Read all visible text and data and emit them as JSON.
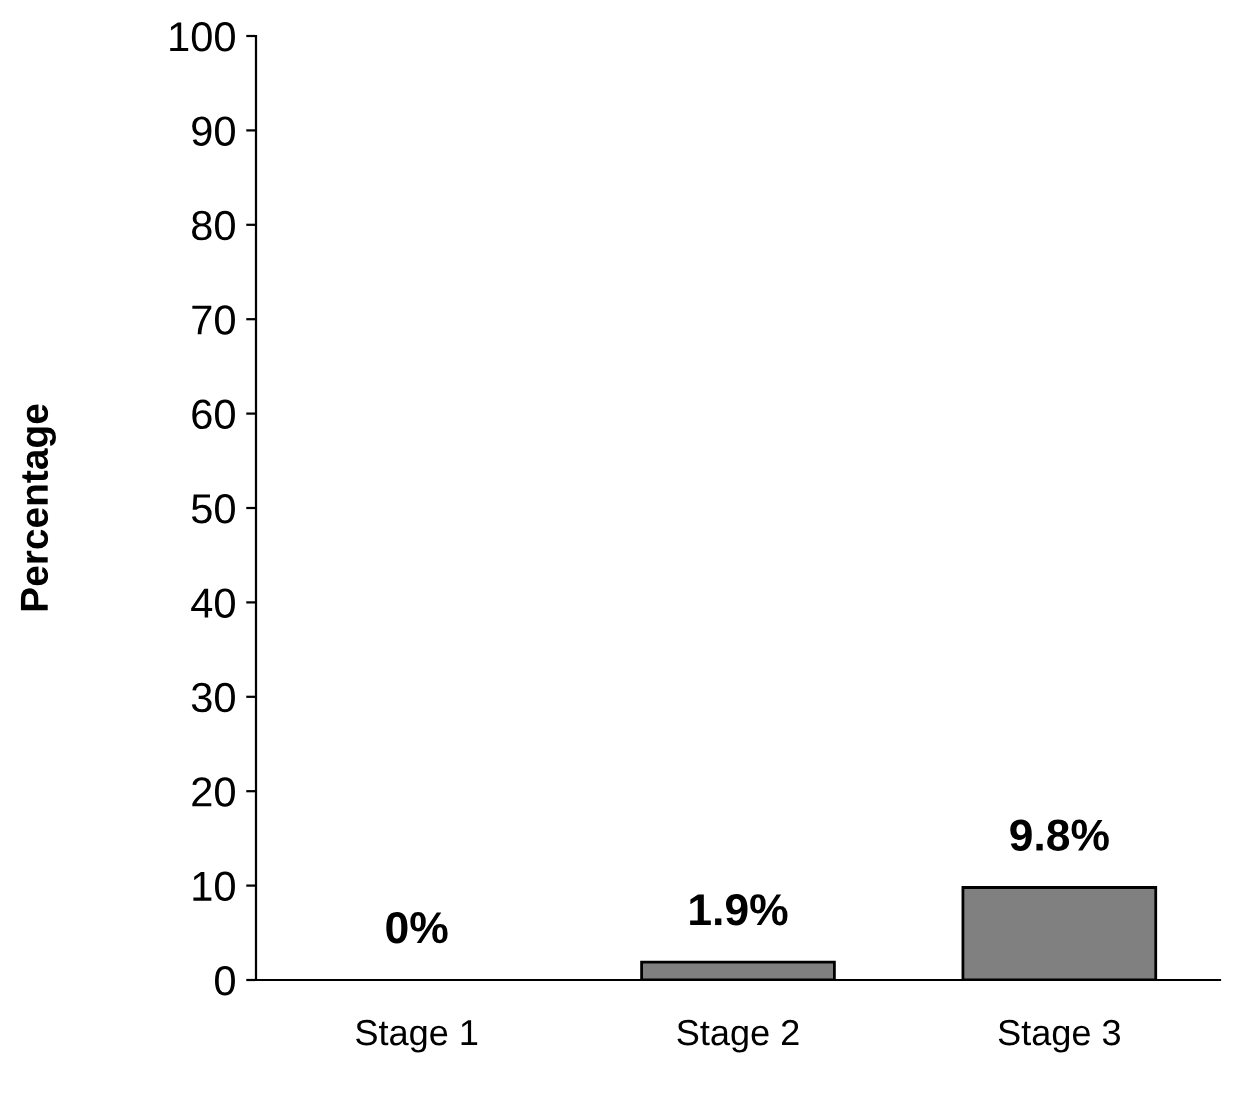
{
  "chart_data": {
    "type": "bar",
    "ylabel": "Percentage",
    "categories": [
      "Stage 1",
      "Stage 2",
      "Stage 3"
    ],
    "values": [
      0,
      1.9,
      9.8
    ],
    "value_labels": [
      "0%",
      "1.9%",
      "9.8%"
    ],
    "color": "#808080",
    "ylim": [
      0,
      100
    ],
    "yticks": [
      0,
      10,
      20,
      30,
      40,
      50,
      60,
      70,
      80,
      90,
      100
    ],
    "grid": false,
    "legend": false
  }
}
